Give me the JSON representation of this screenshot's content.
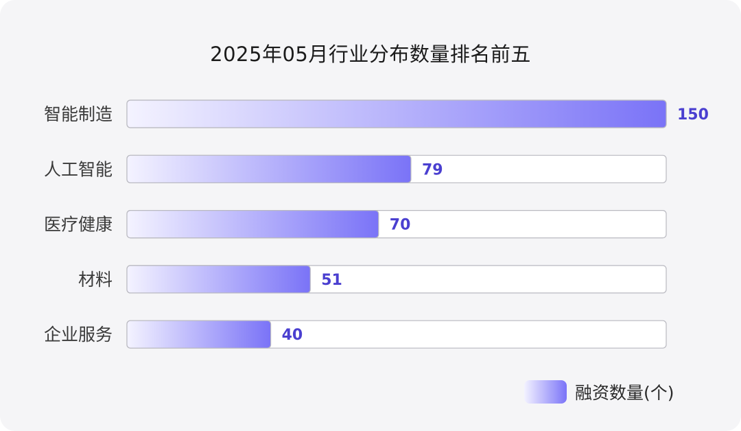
{
  "chart_data": {
    "type": "bar",
    "orientation": "horizontal",
    "title": "2025年05月行业分布数量排名前五",
    "categories": [
      "智能制造",
      "人工智能",
      "医疗健康",
      "材料",
      "企业服务"
    ],
    "series": [
      {
        "name": "融资数量(个)",
        "values": [
          150,
          79,
          70,
          51,
          40
        ]
      }
    ],
    "xlim": [
      0,
      150
    ],
    "grid": false,
    "legend_position": "bottom-right",
    "colors": {
      "bar_start": "#f4f3ff",
      "bar_end": "#7a73f7",
      "value_label": "#4a3fd0",
      "track": "#ffffff",
      "track_border": "#b9b9c0"
    }
  }
}
